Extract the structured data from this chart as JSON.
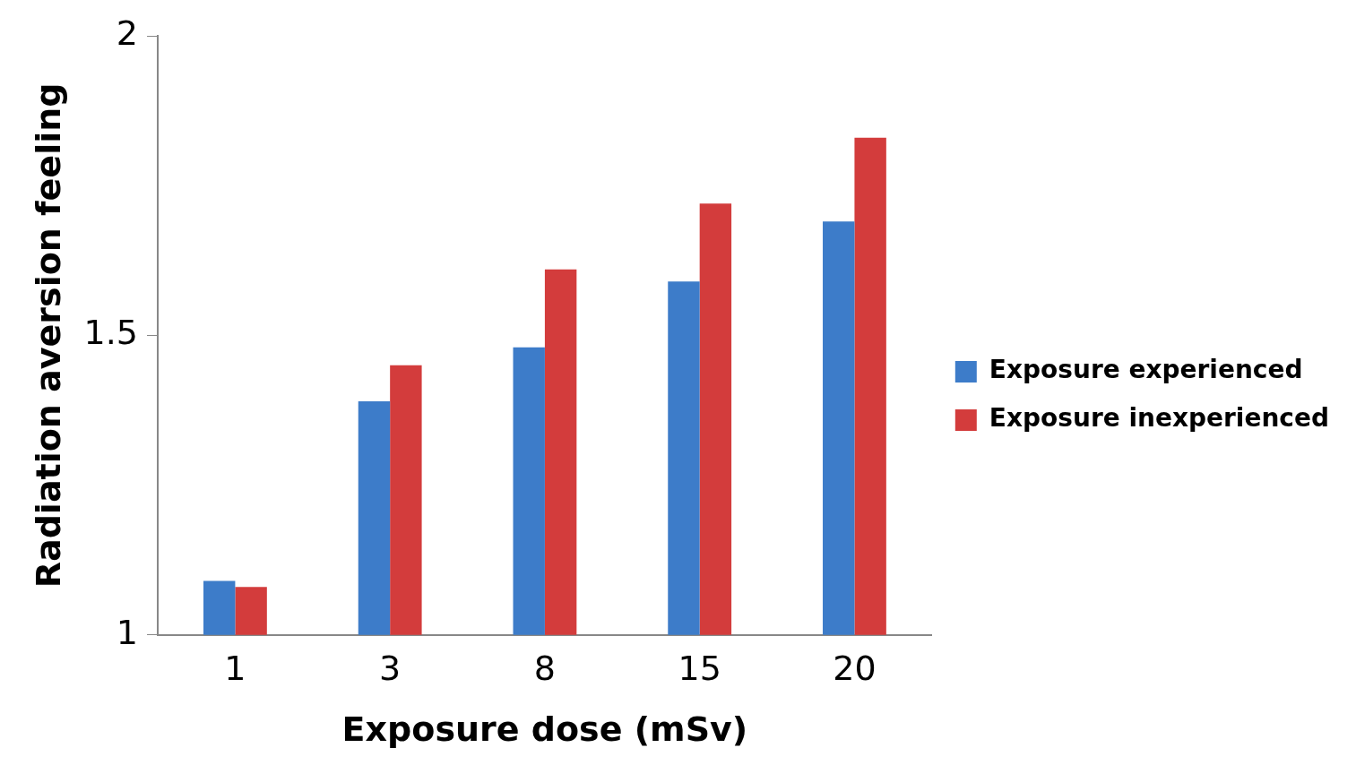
{
  "chart_data": {
    "type": "bar",
    "xlabel": "Exposure dose (mSv)",
    "ylabel": "Radiation aversion feeling",
    "categories": [
      "1",
      "3",
      "8",
      "15",
      "20"
    ],
    "series": [
      {
        "name": "Exposure experienced",
        "color": "#3d7cc9",
        "values": [
          1.09,
          1.39,
          1.48,
          1.59,
          1.69
        ]
      },
      {
        "name": "Exposure inexperienced",
        "color": "#d33c3c",
        "values": [
          1.08,
          1.45,
          1.61,
          1.72,
          1.83
        ]
      }
    ],
    "ylim": [
      1,
      2
    ],
    "yticks": [
      1,
      1.5,
      2
    ],
    "grid": false,
    "legend": "right"
  }
}
